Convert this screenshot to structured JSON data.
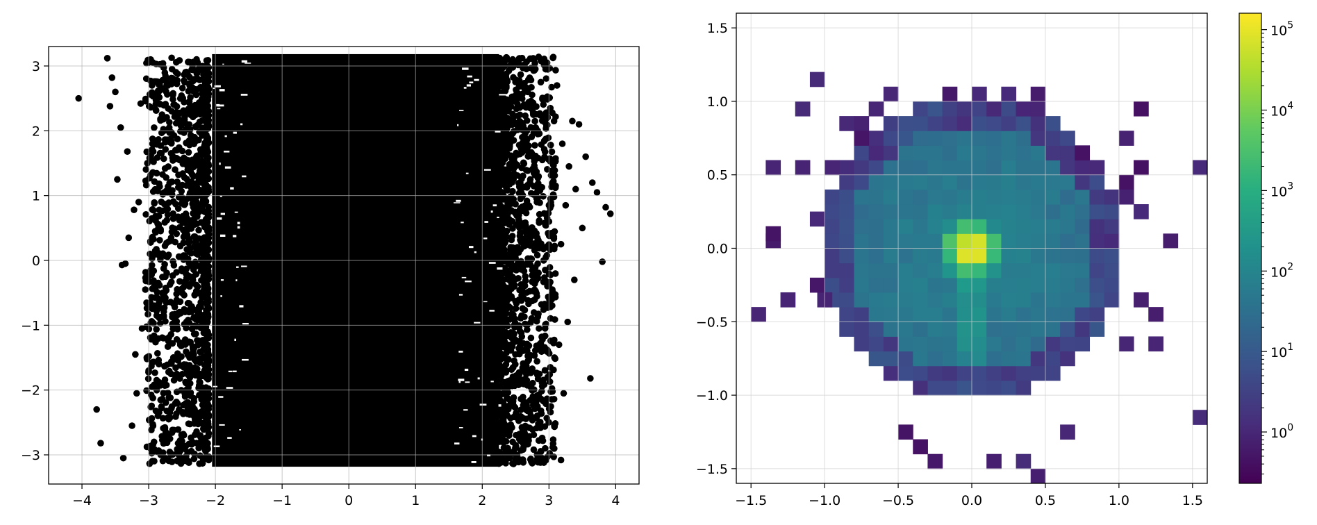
{
  "chart_data": [
    {
      "type": "scatter",
      "title": "",
      "xlabel": "",
      "ylabel": "",
      "xlim": [
        -4.5,
        4.35
      ],
      "ylim": [
        -3.45,
        3.3
      ],
      "grid": true,
      "marker_color": "#000000",
      "x_ticks": [
        "−4",
        "−3",
        "−2",
        "−1",
        "0",
        "1",
        "2",
        "3",
        "4"
      ],
      "x_tick_values": [
        -4,
        -3,
        -2,
        -1,
        0,
        1,
        2,
        3,
        4
      ],
      "y_ticks": [
        "−3",
        "−2",
        "−1",
        "0",
        "1",
        "2",
        "3"
      ],
      "y_tick_values": [
        -3,
        -2,
        -1,
        0,
        1,
        2,
        3
      ],
      "dense_region": {
        "x": [
          -2.05,
          2.25
        ],
        "y": [
          -3.14,
          3.14
        ]
      },
      "outlier_points": [
        [
          -4.05,
          2.5
        ],
        [
          -3.78,
          -2.3
        ],
        [
          -3.72,
          -2.82
        ],
        [
          -3.62,
          3.12
        ],
        [
          -3.58,
          2.38
        ],
        [
          -3.55,
          2.82
        ],
        [
          -3.5,
          2.6
        ],
        [
          -3.47,
          1.25
        ],
        [
          -3.42,
          2.05
        ],
        [
          -3.4,
          -0.07
        ],
        [
          -3.38,
          -3.05
        ],
        [
          -3.35,
          -0.05
        ],
        [
          -3.32,
          1.68
        ],
        [
          -3.3,
          0.35
        ],
        [
          -3.25,
          -2.55
        ],
        [
          -3.22,
          0.78
        ],
        [
          -3.2,
          -1.45
        ],
        [
          -3.18,
          -2.05
        ],
        [
          -3.15,
          0.9
        ],
        [
          -3.12,
          2.42
        ],
        [
          -3.1,
          -1.05
        ],
        [
          -3.05,
          -0.45
        ],
        [
          -3.02,
          1.5
        ],
        [
          -3.0,
          -1.7
        ],
        [
          -2.98,
          0.1
        ],
        [
          -2.95,
          2.7
        ],
        [
          -2.92,
          -2.8
        ],
        [
          -2.9,
          1.85
        ],
        [
          -2.88,
          -0.85
        ],
        [
          -2.85,
          0.55
        ],
        [
          -2.82,
          -3.0
        ],
        [
          -2.8,
          2.25
        ],
        [
          -2.78,
          -1.2
        ],
        [
          -2.75,
          -0.25
        ],
        [
          -2.72,
          1.05
        ],
        [
          -2.7,
          -2.45
        ],
        [
          -2.68,
          0.3
        ],
        [
          -2.65,
          2.95
        ],
        [
          -2.62,
          -1.85
        ],
        [
          -2.6,
          1.7
        ],
        [
          2.58,
          -0.6
        ],
        [
          2.6,
          1.9
        ],
        [
          2.62,
          -2.7
        ],
        [
          2.65,
          0.35
        ],
        [
          2.68,
          2.6
        ],
        [
          2.7,
          -1.5
        ],
        [
          2.72,
          1.25
        ],
        [
          2.75,
          -0.15
        ],
        [
          2.78,
          -2.2
        ],
        [
          2.8,
          2.05
        ],
        [
          2.82,
          0.9
        ],
        [
          2.85,
          -1.05
        ],
        [
          2.88,
          -2.95
        ],
        [
          2.9,
          1.55
        ],
        [
          2.92,
          0.0
        ],
        [
          2.95,
          2.95
        ],
        [
          2.98,
          -1.8
        ],
        [
          3.0,
          0.6
        ],
        [
          3.02,
          2.35
        ],
        [
          3.05,
          -0.45
        ],
        [
          3.08,
          -2.55
        ],
        [
          3.1,
          1.15
        ],
        [
          3.12,
          2.7
        ],
        [
          3.15,
          -1.3
        ],
        [
          3.18,
          0.25
        ],
        [
          3.2,
          1.8
        ],
        [
          3.22,
          -2.05
        ],
        [
          3.25,
          0.85
        ],
        [
          3.28,
          -0.95
        ],
        [
          3.3,
          1.45
        ],
        [
          3.35,
          2.15
        ],
        [
          3.38,
          -0.3
        ],
        [
          3.4,
          1.1
        ],
        [
          3.45,
          2.1
        ],
        [
          3.5,
          0.5
        ],
        [
          3.55,
          1.6
        ],
        [
          3.62,
          -1.82
        ],
        [
          3.65,
          1.2
        ],
        [
          3.72,
          1.05
        ],
        [
          3.8,
          -0.02
        ],
        [
          3.85,
          0.82
        ],
        [
          3.92,
          0.72
        ],
        [
          3.18,
          -3.08
        ],
        [
          2.45,
          2.45
        ],
        [
          2.5,
          -2.85
        ]
      ]
    },
    {
      "type": "heatmap",
      "title": "",
      "xlabel": "",
      "ylabel": "",
      "xlim": [
        -1.6,
        1.6
      ],
      "ylim": [
        -1.6,
        1.6
      ],
      "bins": 32,
      "grid": true,
      "colormap": "viridis",
      "colorscale": "log",
      "colorbar_range": [
        0.23,
        160000
      ],
      "x_ticks": [
        "−1.5",
        "−1.0",
        "−0.5",
        "0.0",
        "0.5",
        "1.0",
        "1.5"
      ],
      "x_tick_values": [
        -1.5,
        -1.0,
        -0.5,
        0.0,
        0.5,
        1.0,
        1.5
      ],
      "y_ticks": [
        "−1.5",
        "−1.0",
        "−0.5",
        "0.0",
        "0.5",
        "1.0",
        "1.5"
      ],
      "y_tick_values": [
        -1.5,
        -1.0,
        -0.5,
        0.0,
        0.5,
        1.0,
        1.5
      ],
      "colorbar_ticks": [
        {
          "base": "10",
          "exp": "0",
          "value": 1
        },
        {
          "base": "10",
          "exp": "1",
          "value": 10
        },
        {
          "base": "10",
          "exp": "2",
          "value": 100
        },
        {
          "base": "10",
          "exp": "3",
          "value": 1000
        },
        {
          "base": "10",
          "exp": "4",
          "value": 10000
        },
        {
          "base": "10",
          "exp": "5",
          "value": 100000
        }
      ],
      "peak": {
        "x": 0.0,
        "y": 0.0,
        "count": 160000
      },
      "core_radius": 1.0,
      "sparse_cells": [
        [
          -1.45,
          -0.45
        ],
        [
          -1.35,
          0.05
        ],
        [
          -1.35,
          0.55
        ],
        [
          -1.35,
          0.1
        ],
        [
          -1.25,
          -0.35
        ],
        [
          -1.15,
          0.55
        ],
        [
          -1.15,
          0.95
        ],
        [
          -1.05,
          1.15
        ],
        [
          -1.0,
          -0.35
        ],
        [
          -1.05,
          -0.25
        ],
        [
          -1.05,
          0.2
        ],
        [
          -0.95,
          0.55
        ],
        [
          -0.85,
          0.85
        ],
        [
          -0.75,
          0.85
        ],
        [
          -0.75,
          0.75
        ],
        [
          -0.65,
          0.95
        ],
        [
          -0.55,
          1.05
        ],
        [
          -0.45,
          -1.25
        ],
        [
          -0.35,
          -1.35
        ],
        [
          -0.25,
          -1.45
        ],
        [
          -0.15,
          1.05
        ],
        [
          0.05,
          1.05
        ],
        [
          0.25,
          1.05
        ],
        [
          0.35,
          0.95
        ],
        [
          0.45,
          1.05
        ],
        [
          0.45,
          0.95
        ],
        [
          0.15,
          -1.45
        ],
        [
          0.35,
          -1.45
        ],
        [
          0.45,
          -1.55
        ],
        [
          0.65,
          -1.25
        ],
        [
          0.75,
          0.65
        ],
        [
          0.85,
          0.55
        ],
        [
          1.05,
          0.45
        ],
        [
          1.05,
          0.35
        ],
        [
          1.15,
          0.55
        ],
        [
          1.15,
          0.25
        ],
        [
          1.15,
          -0.35
        ],
        [
          1.15,
          0.95
        ],
        [
          1.05,
          0.75
        ],
        [
          1.35,
          0.05
        ],
        [
          1.25,
          -0.45
        ],
        [
          1.25,
          -0.65
        ],
        [
          1.05,
          -0.65
        ],
        [
          1.55,
          0.55
        ],
        [
          1.55,
          -1.15
        ]
      ]
    }
  ]
}
